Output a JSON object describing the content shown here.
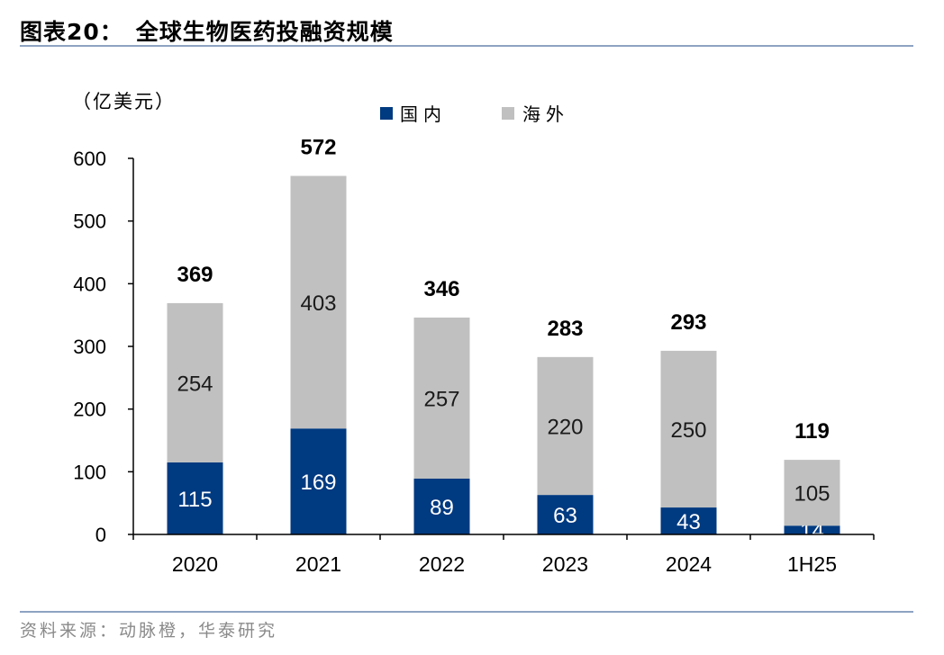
{
  "header": {
    "label": "图表20：",
    "title": "全球生物医药投融资规模"
  },
  "source": "资料来源：动脉橙，华泰研究",
  "colors": {
    "domestic": "#003a80",
    "overseas": "#c0c0c0",
    "rule": "#8ea3c2"
  },
  "chart_data": {
    "type": "bar",
    "stacked": true,
    "title": "全球生物医药投融资规模",
    "ylabel": "（亿美元）",
    "xlabel": "",
    "ylim": [
      0,
      600
    ],
    "yticks": [
      0,
      100,
      200,
      300,
      400,
      500,
      600
    ],
    "categories": [
      "2020",
      "2021",
      "2022",
      "2023",
      "2024",
      "1H25"
    ],
    "series": [
      {
        "name": "国内",
        "values": [
          115,
          169,
          89,
          63,
          43,
          14
        ]
      },
      {
        "name": "海外",
        "values": [
          254,
          403,
          257,
          220,
          250,
          105
        ]
      }
    ],
    "totals": [
      369,
      572,
      346,
      283,
      293,
      119
    ],
    "legend_position": "top"
  }
}
